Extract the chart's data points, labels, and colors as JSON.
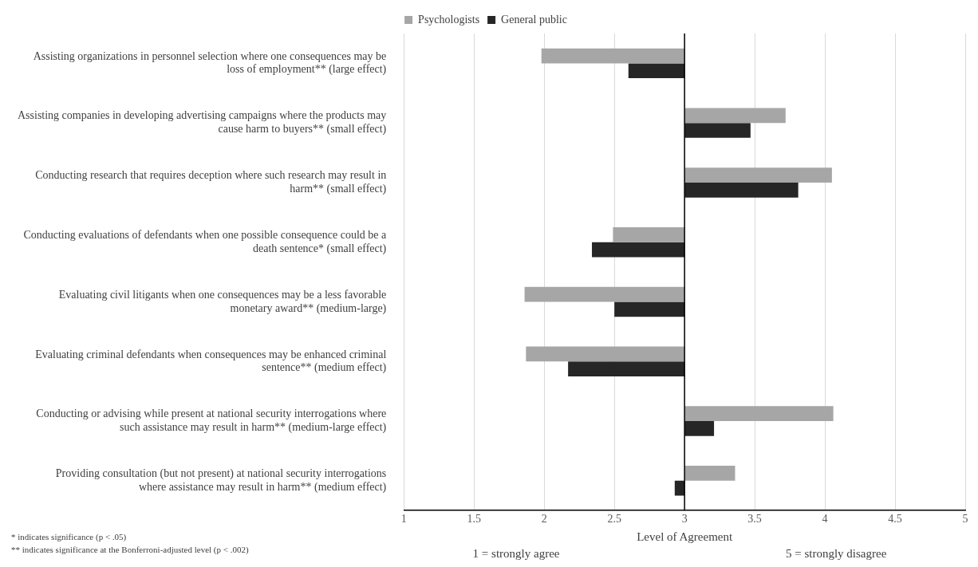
{
  "chart_data": {
    "type": "bar",
    "orientation": "horizontal",
    "xlabel": "Level of Agreement",
    "categories": [
      "Assisting organizations in personnel selection where one consequences may be loss of employment** (large effect)",
      "Assisting companies in developing advertising campaigns where the products may cause harm to buyers** (small effect)",
      "Conducting research that requires deception where such research may result in harm** (small effect)",
      "Conducting evaluations of defendants when one possible consequence could be a death sentence* (small effect)",
      "Evaluating civil litigants when one consequences may be a less favorable monetary award** (medium-large)",
      "Evaluating criminal defendants when consequences may be enhanced criminal sentence** (medium effect)",
      "Conducting or advising while present at national security interrogations where such assistance may result in harm** (medium-large effect)",
      "Providing consultation (but not present) at national security interrogations where assistance may result in harm** (medium effect)"
    ],
    "series": [
      {
        "name": "Psychologists",
        "color": "#a6a6a6",
        "base": [
          3,
          3,
          3,
          3,
          3,
          3,
          3,
          3
        ],
        "values": [
          -1.02,
          0.72,
          1.05,
          -0.51,
          -1.14,
          -1.13,
          1.06,
          0.36
        ]
      },
      {
        "name": "General public",
        "color": "#262626",
        "base": [
          3,
          3,
          3,
          3,
          3,
          3,
          3,
          3
        ],
        "values": [
          -0.4,
          0.47,
          0.81,
          -0.66,
          -0.5,
          -0.83,
          0.21,
          -0.07
        ]
      }
    ],
    "xlim": [
      1,
      5
    ],
    "xticks": [
      1,
      1.5,
      2,
      2.5,
      3,
      3.5,
      4,
      4.5,
      5
    ],
    "grid": "x",
    "legend": "top",
    "ref_lines": [
      {
        "axis": "x",
        "value": 3,
        "color": "#000000"
      }
    ],
    "annotations": [
      "1 = strongly agree",
      "5 = strongly disagree",
      "* indicates significance (p < .05)",
      "** indicates significance at the Bonferroni-adjusted level (p < .002)"
    ]
  }
}
